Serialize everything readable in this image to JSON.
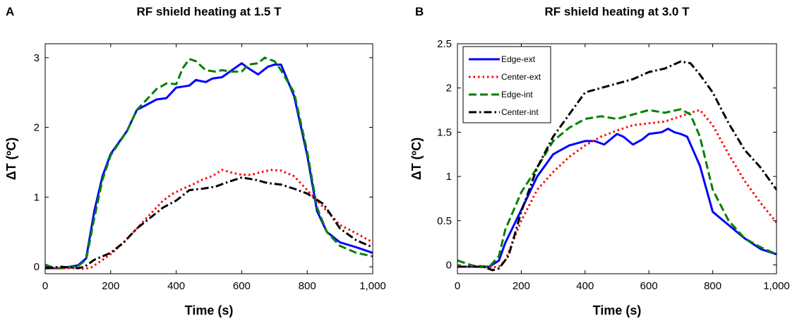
{
  "chart_data": [
    {
      "type": "line",
      "panel": "A",
      "title": "RF shield heating at 1.5 T",
      "xlabel": "Time (s)",
      "ylabel": "ΔT (ºC)",
      "xlim": [
        0,
        1000
      ],
      "ylim": [
        -0.1,
        3.2
      ],
      "xticks": [
        0,
        200,
        400,
        600,
        800,
        1000
      ],
      "xtick_labels": [
        "0",
        "200",
        "400",
        "600",
        "800",
        "1,000"
      ],
      "yticks": [
        0,
        1,
        2,
        3
      ],
      "ytick_labels": [
        "0",
        "1",
        "2",
        "3"
      ],
      "grid": false,
      "legend": null,
      "series": [
        {
          "color": "#0000ff",
          "dash": "solid",
          "x": [
            0,
            50,
            100,
            125,
            150,
            175,
            200,
            250,
            280,
            300,
            340,
            370,
            400,
            440,
            460,
            490,
            510,
            540,
            570,
            600,
            620,
            650,
            680,
            700,
            720,
            760,
            800,
            830,
            860,
            900,
            950,
            1000
          ],
          "y": [
            -0.02,
            -0.02,
            0.02,
            0.12,
            0.8,
            1.3,
            1.62,
            1.95,
            2.25,
            2.3,
            2.4,
            2.42,
            2.57,
            2.6,
            2.68,
            2.65,
            2.7,
            2.72,
            2.82,
            2.92,
            2.85,
            2.76,
            2.87,
            2.9,
            2.9,
            2.45,
            1.6,
            0.8,
            0.5,
            0.35,
            0.28,
            0.2
          ]
        },
        {
          "color": "#008000",
          "dash": "dashed",
          "x": [
            0,
            30,
            60,
            100,
            125,
            150,
            175,
            200,
            250,
            280,
            300,
            340,
            370,
            400,
            420,
            440,
            460,
            490,
            520,
            540,
            570,
            600,
            620,
            650,
            670,
            700,
            720,
            760,
            800,
            830,
            860,
            900,
            950,
            1000
          ],
          "y": [
            0.03,
            -0.02,
            -0.02,
            0.01,
            0.1,
            0.7,
            1.25,
            1.6,
            1.95,
            2.25,
            2.35,
            2.55,
            2.63,
            2.62,
            2.85,
            2.98,
            2.95,
            2.82,
            2.8,
            2.82,
            2.8,
            2.8,
            2.9,
            2.92,
            3.0,
            2.95,
            2.82,
            2.5,
            1.65,
            0.85,
            0.5,
            0.3,
            0.2,
            0.15
          ]
        },
        {
          "color": "#ff0000",
          "dash": "dotted",
          "x": [
            0,
            50,
            100,
            120,
            140,
            160,
            200,
            240,
            280,
            320,
            360,
            390,
            420,
            450,
            480,
            510,
            540,
            570,
            600,
            630,
            660,
            690,
            720,
            760,
            800,
            850,
            900,
            950,
            1000
          ],
          "y": [
            -0.02,
            -0.02,
            -0.02,
            -0.03,
            -0.01,
            0.05,
            0.18,
            0.35,
            0.55,
            0.75,
            0.95,
            1.05,
            1.12,
            1.18,
            1.25,
            1.3,
            1.39,
            1.35,
            1.32,
            1.32,
            1.36,
            1.39,
            1.38,
            1.3,
            1.1,
            0.85,
            0.6,
            0.48,
            0.35
          ]
        },
        {
          "color": "#000000",
          "dash": "dashdot",
          "x": [
            0,
            50,
            100,
            120,
            150,
            200,
            240,
            280,
            320,
            360,
            400,
            440,
            480,
            520,
            560,
            600,
            640,
            680,
            720,
            760,
            800,
            850,
            900,
            950,
            1000
          ],
          "y": [
            -0.02,
            0.0,
            -0.02,
            0.0,
            0.1,
            0.2,
            0.35,
            0.55,
            0.7,
            0.85,
            0.95,
            1.1,
            1.12,
            1.15,
            1.22,
            1.28,
            1.25,
            1.2,
            1.18,
            1.12,
            1.05,
            0.9,
            0.55,
            0.38,
            0.28
          ]
        }
      ]
    },
    {
      "type": "line",
      "panel": "B",
      "title": "RF shield heating at 3.0 T",
      "xlabel": "Time (s)",
      "ylabel": "ΔT (ºC)",
      "xlim": [
        0,
        1000
      ],
      "ylim": [
        -0.1,
        2.5
      ],
      "xticks": [
        0,
        200,
        400,
        600,
        800,
        1000
      ],
      "xtick_labels": [
        "0",
        "200",
        "400",
        "600",
        "800",
        "1,000"
      ],
      "yticks": [
        0,
        0.5,
        1,
        1.5,
        2,
        2.5
      ],
      "ytick_labels": [
        "0",
        "0.5",
        "1",
        "1.5",
        "2",
        "2.5"
      ],
      "grid": false,
      "legend": "top-left",
      "series": [
        {
          "name": "Edge-ext",
          "color": "#0000ff",
          "dash": "solid",
          "x": [
            0,
            50,
            100,
            130,
            150,
            200,
            250,
            300,
            350,
            400,
            430,
            460,
            480,
            500,
            520,
            550,
            580,
            600,
            640,
            660,
            680,
            700,
            720,
            760,
            800,
            850,
            900,
            950,
            1000
          ],
          "y": [
            -0.02,
            -0.02,
            -0.02,
            0.05,
            0.25,
            0.62,
            1.0,
            1.25,
            1.35,
            1.4,
            1.4,
            1.36,
            1.42,
            1.48,
            1.45,
            1.36,
            1.42,
            1.48,
            1.5,
            1.54,
            1.5,
            1.48,
            1.45,
            1.12,
            0.6,
            0.45,
            0.3,
            0.18,
            0.12
          ]
        },
        {
          "name": "Center-ext",
          "color": "#ff0000",
          "dash": "dotted",
          "x": [
            0,
            50,
            100,
            130,
            150,
            200,
            250,
            300,
            350,
            400,
            450,
            500,
            550,
            600,
            650,
            700,
            730,
            760,
            800,
            850,
            900,
            950,
            1000
          ],
          "y": [
            -0.02,
            -0.02,
            -0.03,
            -0.02,
            0.05,
            0.5,
            0.85,
            1.05,
            1.22,
            1.35,
            1.45,
            1.52,
            1.58,
            1.6,
            1.62,
            1.68,
            1.72,
            1.75,
            1.58,
            1.25,
            0.95,
            0.7,
            0.48
          ]
        },
        {
          "name": "Edge-int",
          "color": "#008000",
          "dash": "dashed",
          "x": [
            0,
            50,
            100,
            130,
            150,
            200,
            250,
            300,
            350,
            400,
            450,
            500,
            550,
            600,
            650,
            700,
            730,
            760,
            800,
            850,
            900,
            950,
            1000
          ],
          "y": [
            0.05,
            -0.01,
            -0.02,
            0.1,
            0.4,
            0.82,
            1.1,
            1.4,
            1.55,
            1.65,
            1.68,
            1.65,
            1.7,
            1.75,
            1.72,
            1.76,
            1.7,
            1.45,
            0.85,
            0.5,
            0.3,
            0.2,
            0.12
          ]
        },
        {
          "name": "Center-int",
          "color": "#000000",
          "dash": "dashdot",
          "x": [
            0,
            50,
            80,
            110,
            130,
            160,
            200,
            250,
            300,
            350,
            400,
            450,
            500,
            550,
            600,
            650,
            700,
            730,
            760,
            800,
            850,
            900,
            950,
            1000
          ],
          "y": [
            -0.02,
            -0.02,
            -0.02,
            -0.06,
            -0.04,
            0.1,
            0.6,
            1.1,
            1.45,
            1.7,
            1.95,
            2.0,
            2.05,
            2.1,
            2.18,
            2.22,
            2.3,
            2.28,
            2.15,
            1.95,
            1.6,
            1.3,
            1.1,
            0.85
          ]
        }
      ]
    }
  ]
}
